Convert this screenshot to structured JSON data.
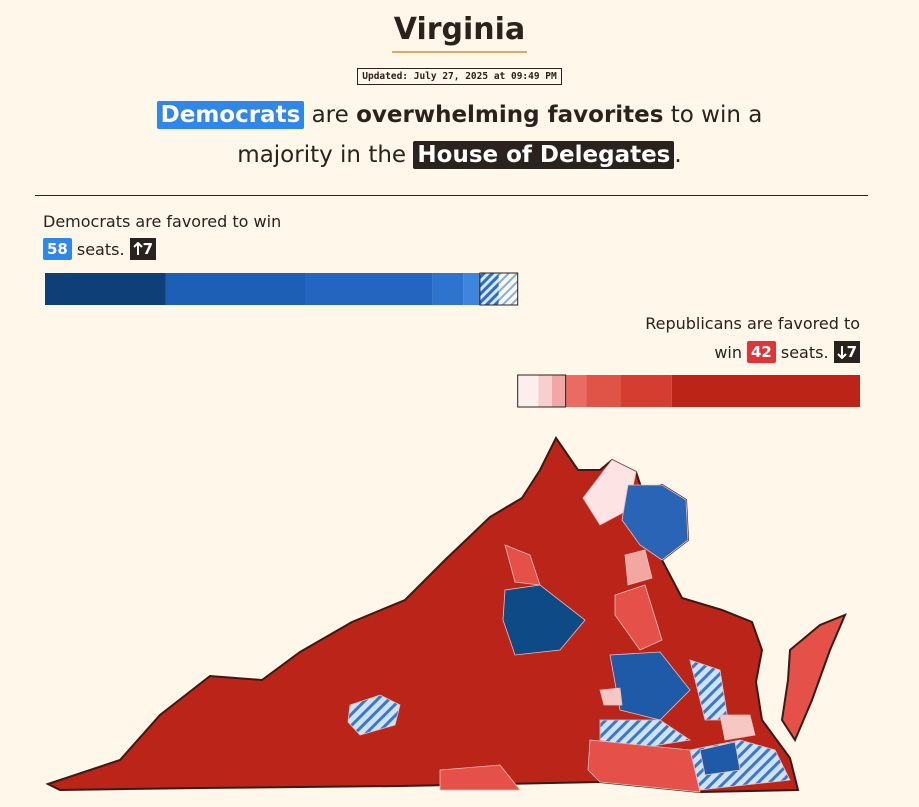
{
  "header": {
    "title": "Virginia",
    "updated": "Updated: July 27, 2025 at 09:49 PM"
  },
  "headline": {
    "party": "Democrats",
    "text1": "are",
    "strength": "overwhelming favorites",
    "text2": "to win a",
    "text3": "majority in the",
    "chamber": "House of Delegates",
    "end": "."
  },
  "democrats": {
    "caption": "Democrats are favored to win",
    "seats": 58,
    "seats_word": "seats.",
    "change": 7,
    "change_direction": "up",
    "color": "#2f86eb"
  },
  "republicans": {
    "caption": "Republicans are favored to",
    "win_word": "win",
    "seats": 42,
    "seats_word": "seats.",
    "change": 7,
    "change_direction": "down",
    "color": "#e0343a"
  },
  "total_seats": 100
}
